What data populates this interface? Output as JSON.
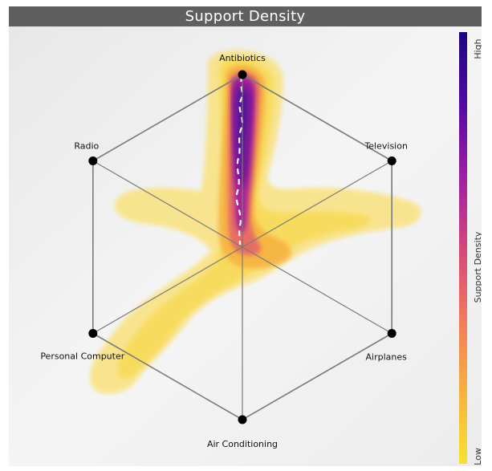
{
  "chart_data": {
    "type": "radar-density",
    "title": "Support Density",
    "axes": [
      "Antibiotics",
      "Television",
      "Airplanes",
      "Air Conditioning",
      "Personal Computer",
      "Radio"
    ],
    "colorbar": {
      "label": "Support Density",
      "min_label": "Low",
      "max_label": "High",
      "colors": [
        "#f8e22f",
        "#f7b23f",
        "#f27a5c",
        "#d3477c",
        "#9e1ea4",
        "#5409a3",
        "#1a0780"
      ]
    },
    "density_regions": [
      {
        "description": "axis",
        "toward": "Antibiotics",
        "level": "high"
      },
      {
        "description": "lobe",
        "toward": "Television",
        "level": "low"
      },
      {
        "description": "lobe",
        "toward": "Personal Computer",
        "level": "low"
      },
      {
        "description": "lobe",
        "toward": "Radio",
        "level": "low"
      }
    ],
    "grid": true
  }
}
